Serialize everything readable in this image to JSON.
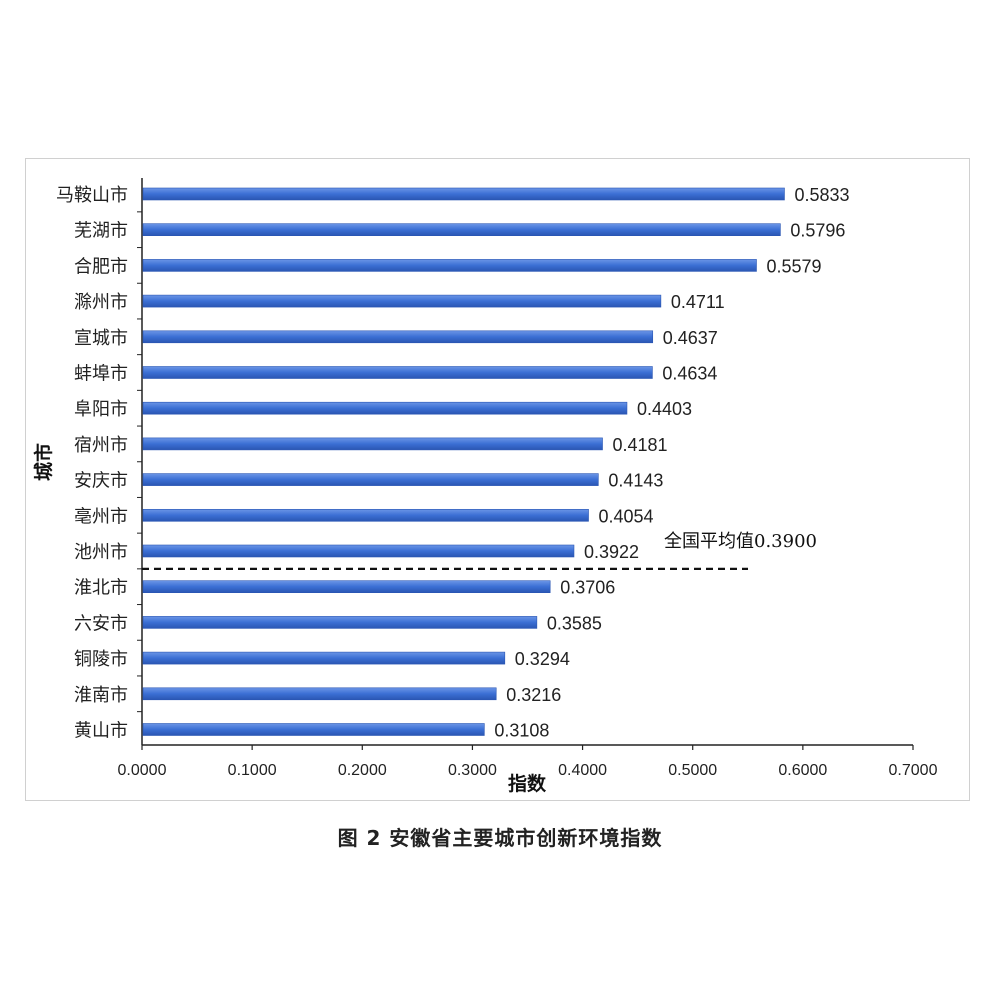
{
  "caption": "图 2 安徽省主要城市创新环境指数",
  "chart_data": {
    "type": "bar",
    "orientation": "horizontal",
    "xlabel": "指数",
    "ylabel": "城市",
    "xlim": [
      0,
      0.7
    ],
    "xticks": [
      "0.0000",
      "0.1000",
      "0.2000",
      "0.3000",
      "0.4000",
      "0.5000",
      "0.6000",
      "0.7000"
    ],
    "grid": false,
    "bar_color": "#3b6fd4",
    "categories": [
      "马鞍山市",
      "芜湖市",
      "合肥市",
      "滁州市",
      "宣城市",
      "蚌埠市",
      "阜阳市",
      "宿州市",
      "安庆市",
      "亳州市",
      "池州市",
      "淮北市",
      "六安市",
      "铜陵市",
      "淮南市",
      "黄山市"
    ],
    "values": [
      0.5833,
      0.5796,
      0.5579,
      0.4711,
      0.4637,
      0.4634,
      0.4403,
      0.4181,
      0.4143,
      0.4054,
      0.3922,
      0.3706,
      0.3585,
      0.3294,
      0.3216,
      0.3108
    ],
    "value_labels": [
      "0.5833",
      "0.5796",
      "0.5579",
      "0.4711",
      "0.4637",
      "0.4634",
      "0.4403",
      "0.4181",
      "0.4143",
      "0.4054",
      "0.3922",
      "0.3706",
      "0.3585",
      "0.3294",
      "0.3216",
      "0.3108"
    ],
    "reference": {
      "label": "全国平均值0.3900",
      "value": 0.39,
      "style": "dashed"
    }
  }
}
